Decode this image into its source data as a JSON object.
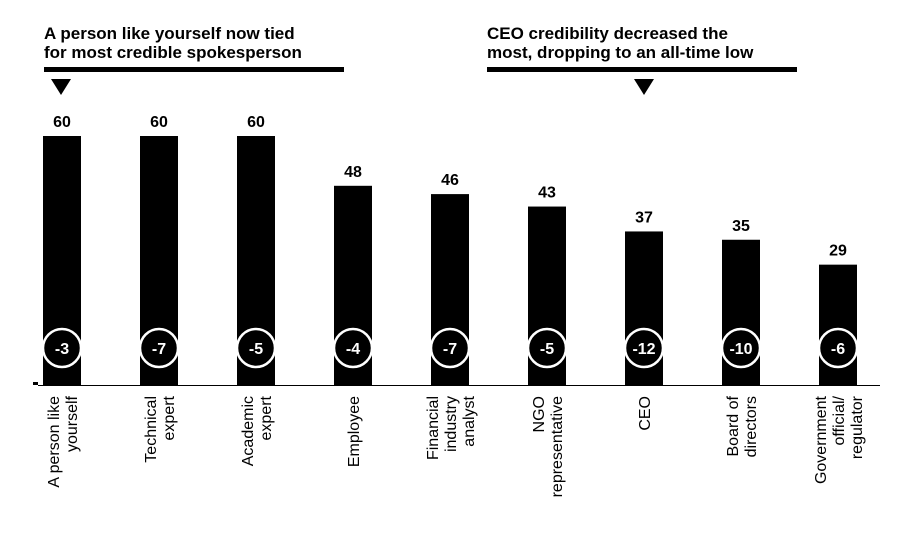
{
  "callouts": [
    {
      "lines": [
        "A person like yourself now tied",
        "for most credible spokesperson"
      ]
    },
    {
      "lines": [
        "CEO credibility decreased the",
        "most, dropping to an all-time low"
      ]
    }
  ],
  "chart_data": {
    "type": "bar",
    "categories": [
      [
        "A person like",
        "yourself"
      ],
      [
        "Technical",
        "expert"
      ],
      [
        "Academic",
        "expert"
      ],
      [
        "Employee"
      ],
      [
        "Financial",
        "industry",
        "analyst"
      ],
      [
        "NGO",
        "representative"
      ],
      [
        "CEO"
      ],
      [
        "Board of",
        "directors"
      ],
      [
        "Government",
        "official/",
        "regulator"
      ]
    ],
    "values": [
      60,
      60,
      60,
      48,
      46,
      43,
      37,
      35,
      29
    ],
    "changes": [
      "-3",
      "-7",
      "-5",
      "-4",
      "-7",
      "-5",
      "-12",
      "-10",
      "-6"
    ],
    "ylim": [
      0,
      60
    ],
    "colors": {
      "bar": "#000000",
      "badge_stroke": "#ffffff",
      "axis": "#000000"
    }
  }
}
